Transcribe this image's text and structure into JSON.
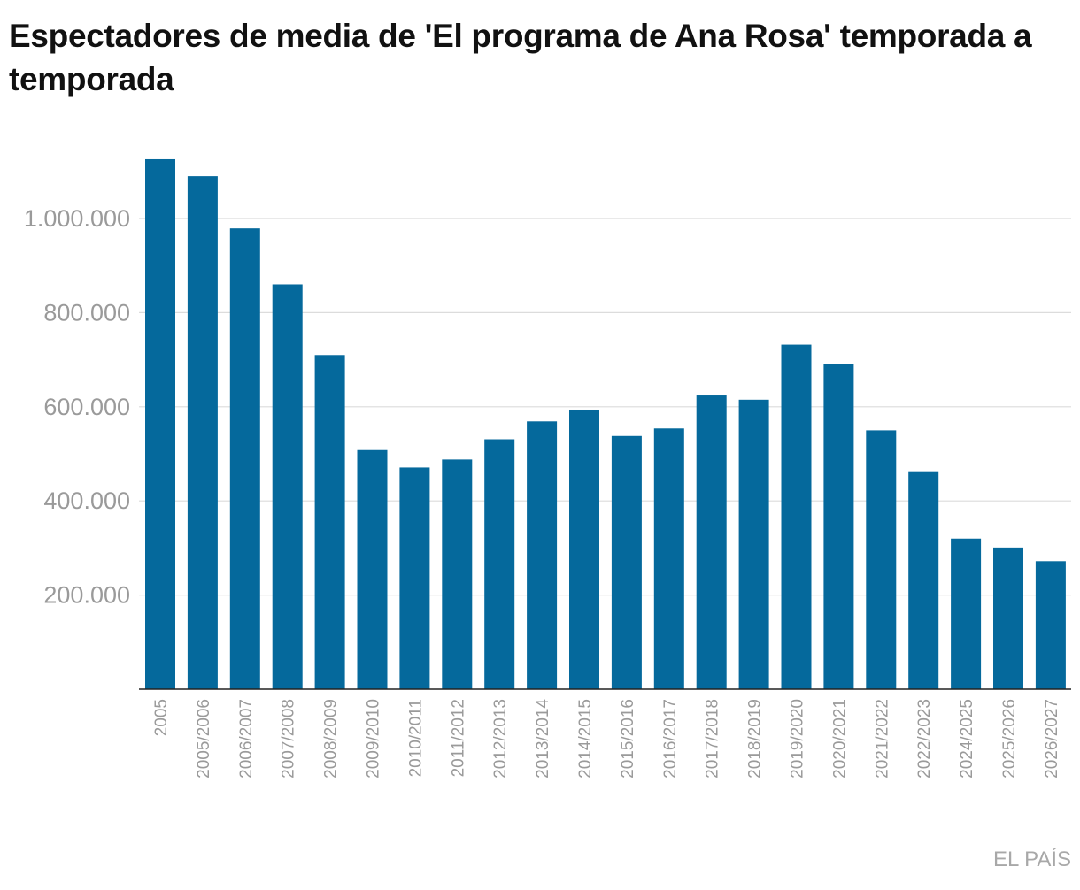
{
  "chart_data": {
    "type": "bar",
    "title": "Espectadores de media de 'El programa de Ana Rosa' temporada a temporada",
    "xlabel": "",
    "ylabel": "",
    "categories": [
      "2005",
      "2005/2006",
      "2006/2007",
      "2007/2008",
      "2008/2009",
      "2009/2010",
      "2010/2011",
      "2011/2012",
      "2012/2013",
      "2013/2014",
      "2014/2015",
      "2015/2016",
      "2016/2017",
      "2017/2018",
      "2018/2019",
      "2019/2020",
      "2020/2021",
      "2021/2022",
      "2022/2023",
      "2024/2025",
      "2025/2026",
      "2026/2027"
    ],
    "values": [
      1126000,
      1090000,
      979000,
      860000,
      710000,
      508000,
      471000,
      488000,
      531000,
      569000,
      594000,
      538000,
      554000,
      624000,
      615000,
      732000,
      690000,
      550000,
      463000,
      320000,
      301000,
      272000
    ],
    "ylim": [
      0,
      1150000
    ],
    "yticks": [
      200000,
      400000,
      600000,
      800000,
      1000000
    ],
    "ytick_labels": [
      "200.000",
      "400.000",
      "600.000",
      "800.000",
      "1.000.000"
    ],
    "grid": true,
    "legend": "none",
    "bar_color": "#05699c"
  },
  "credit": "EL PAÍS"
}
